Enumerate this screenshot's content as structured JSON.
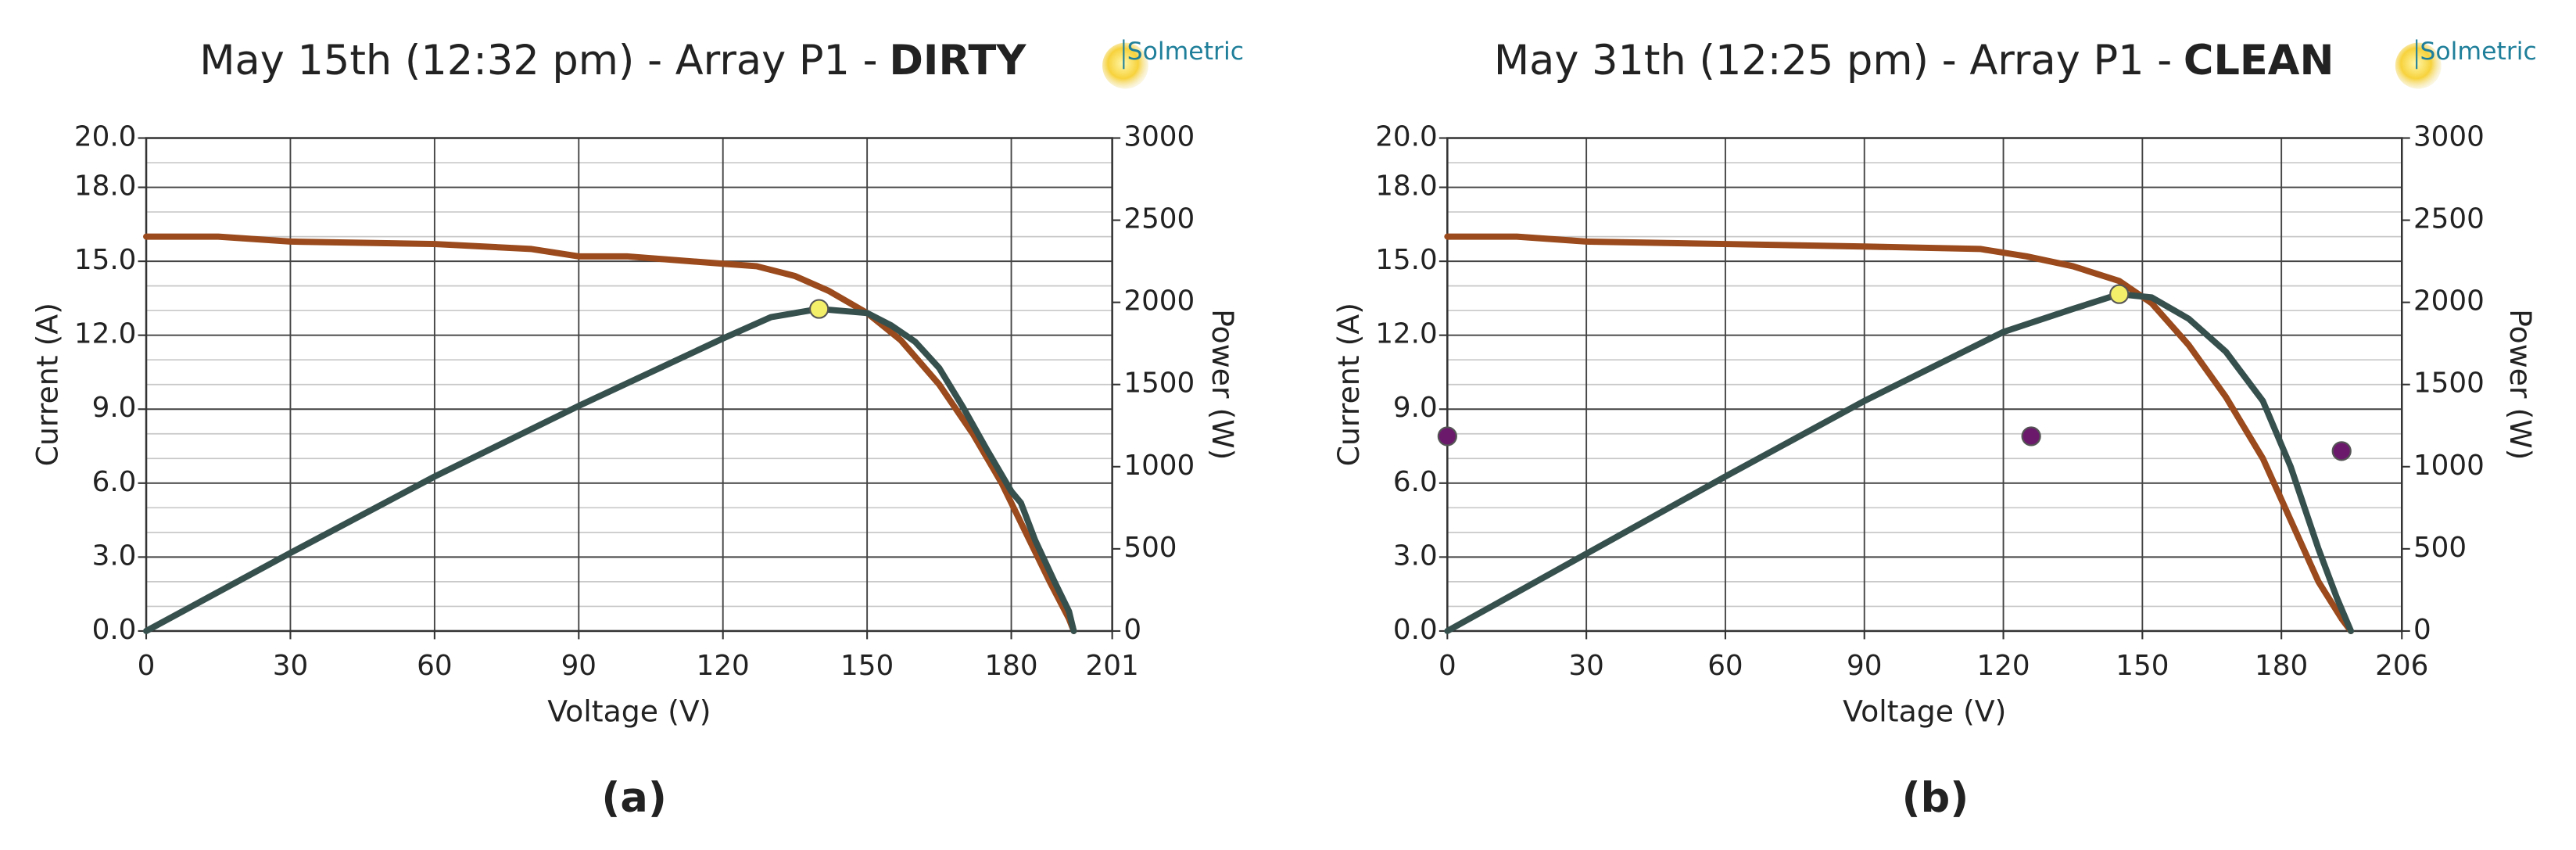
{
  "chart_data": [
    {
      "type": "line",
      "title": "May 15th (12:32 pm) - Array P1 -",
      "title_status": "DIRTY",
      "logo": "Solmetric",
      "panel_label": "(a)",
      "xlabel": "Voltage (V)",
      "ylabel": "Current (A)",
      "y2label": "Power (W)",
      "xlim": [
        0,
        201
      ],
      "xticks": [
        0,
        30,
        60,
        90,
        120,
        150,
        180,
        201
      ],
      "ylim": [
        0,
        20
      ],
      "yticks": [
        {
          "value": 0,
          "label": "0.0"
        },
        {
          "value": 3,
          "label": "3.0"
        },
        {
          "value": 6,
          "label": "6.0"
        },
        {
          "value": 9,
          "label": "9.0"
        },
        {
          "value": 12,
          "label": "12.0"
        },
        {
          "value": 15,
          "label": "15.0"
        },
        {
          "value": 18,
          "label": "18.0"
        },
        {
          "value": 20,
          "label": "20.0"
        }
      ],
      "y2lim": [
        0,
        3000
      ],
      "y2ticks": [
        0,
        500,
        1000,
        1500,
        2000,
        2500,
        3000
      ],
      "grid": true,
      "minor_grid": true,
      "series": [
        {
          "style": "line",
          "color": "#9a4a1c",
          "axis": "y",
          "x": [
            0,
            15,
            30,
            60,
            80,
            90,
            100,
            120,
            127,
            135,
            142,
            150,
            157,
            165,
            172,
            178,
            183,
            188,
            192,
            193
          ],
          "values": [
            16.0,
            16.0,
            15.8,
            15.7,
            15.5,
            15.2,
            15.2,
            14.9,
            14.8,
            14.4,
            13.8,
            12.9,
            11.8,
            10.0,
            8.0,
            6.0,
            4.0,
            2.0,
            0.5,
            0
          ]
        },
        {
          "style": "line",
          "color": "#36504e",
          "axis": "y2",
          "x": [
            0,
            30,
            60,
            90,
            120,
            130,
            140,
            150,
            155,
            160,
            165,
            170,
            175,
            180,
            182,
            185,
            189,
            192,
            193
          ],
          "values": [
            0,
            475,
            940,
            1370,
            1780,
            1910,
            1960,
            1935,
            1860,
            1760,
            1600,
            1360,
            1100,
            850,
            780,
            550,
            300,
            120,
            0
          ]
        },
        {
          "style": "point",
          "color": "#f4ef6a",
          "axis": "y2",
          "x": [
            140
          ],
          "values": [
            1960
          ]
        }
      ]
    },
    {
      "type": "line",
      "title": "May 31th (12:25 pm) - Array P1 -",
      "title_status": "CLEAN",
      "logo": "Solmetric",
      "panel_label": "(b)",
      "xlabel": "Voltage (V)",
      "ylabel": "Current (A)",
      "y2label": "Power (W)",
      "xlim": [
        0,
        206
      ],
      "xticks": [
        0,
        30,
        60,
        90,
        120,
        150,
        180,
        206
      ],
      "ylim": [
        0,
        20
      ],
      "yticks": [
        {
          "value": 0,
          "label": "0.0"
        },
        {
          "value": 3,
          "label": "3.0"
        },
        {
          "value": 6,
          "label": "6.0"
        },
        {
          "value": 9,
          "label": "9.0"
        },
        {
          "value": 12,
          "label": "12.0"
        },
        {
          "value": 15,
          "label": "15.0"
        },
        {
          "value": 18,
          "label": "18.0"
        },
        {
          "value": 20,
          "label": "20.0"
        }
      ],
      "y2lim": [
        0,
        3000
      ],
      "y2ticks": [
        0,
        500,
        1000,
        1500,
        2000,
        2500,
        3000
      ],
      "grid": true,
      "minor_grid": true,
      "series": [
        {
          "style": "line",
          "color": "#9a4a1c",
          "axis": "y",
          "x": [
            0,
            15,
            30,
            60,
            90,
            115,
            125,
            135,
            145,
            152,
            160,
            168,
            176,
            182,
            188,
            193,
            195
          ],
          "values": [
            16.0,
            16.0,
            15.8,
            15.7,
            15.6,
            15.5,
            15.2,
            14.8,
            14.2,
            13.3,
            11.6,
            9.5,
            7.0,
            4.5,
            2.0,
            0.5,
            0
          ]
        },
        {
          "style": "line",
          "color": "#36504e",
          "axis": "y2",
          "x": [
            0,
            30,
            60,
            90,
            120,
            135,
            145,
            152,
            160,
            168,
            176,
            182,
            188,
            192,
            195
          ],
          "values": [
            0,
            470,
            940,
            1400,
            1820,
            1960,
            2050,
            2030,
            1900,
            1700,
            1400,
            1000,
            500,
            200,
            0
          ]
        },
        {
          "style": "point",
          "color": "#f4ef6a",
          "axis": "y2",
          "x": [
            145
          ],
          "values": [
            2050
          ]
        },
        {
          "style": "point",
          "color": "#6b1a6b",
          "axis": "y",
          "x": [
            0,
            126,
            193
          ],
          "values": [
            7.9,
            7.9,
            7.3
          ]
        }
      ]
    }
  ]
}
